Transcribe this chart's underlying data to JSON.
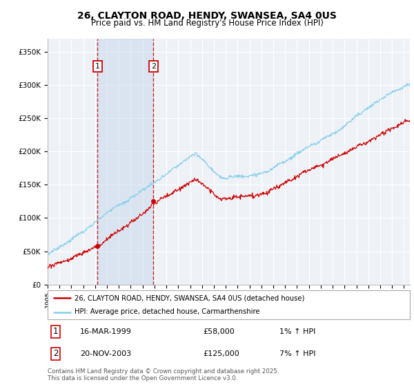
{
  "title": "26, CLAYTON ROAD, HENDY, SWANSEA, SA4 0US",
  "subtitle": "Price paid vs. HM Land Registry's House Price Index (HPI)",
  "title_fontsize": 10,
  "subtitle_fontsize": 8.5,
  "ylabel_ticks": [
    "£0",
    "£50K",
    "£100K",
    "£150K",
    "£200K",
    "£250K",
    "£300K",
    "£350K"
  ],
  "ytick_vals": [
    0,
    50000,
    100000,
    150000,
    200000,
    250000,
    300000,
    350000
  ],
  "ylim": [
    0,
    370000
  ],
  "xlim_start": 1995.0,
  "xlim_end": 2025.5,
  "sale1_date": 1999.21,
  "sale1_price": 58000,
  "sale1_label": "1",
  "sale1_display": "16-MAR-1999",
  "sale1_amount": "£58,000",
  "sale1_hpi": "1% ↑ HPI",
  "sale2_date": 2003.9,
  "sale2_price": 125000,
  "sale2_label": "2",
  "sale2_display": "20-NOV-2003",
  "sale2_amount": "£125,000",
  "sale2_hpi": "7% ↑ HPI",
  "line_color_red": "#CC0000",
  "line_color_blue": "#87CEEB",
  "legend_label_red": "26, CLAYTON ROAD, HENDY, SWANSEA, SA4 0US (detached house)",
  "legend_label_blue": "HPI: Average price, detached house, Carmarthenshire",
  "footer1": "Contains HM Land Registry data © Crown copyright and database right 2025.",
  "footer2": "This data is licensed under the Open Government Licence v3.0.",
  "background_color": "#eef2f7",
  "grid_color": "#ffffff",
  "shade_color": "#c8d8ea"
}
